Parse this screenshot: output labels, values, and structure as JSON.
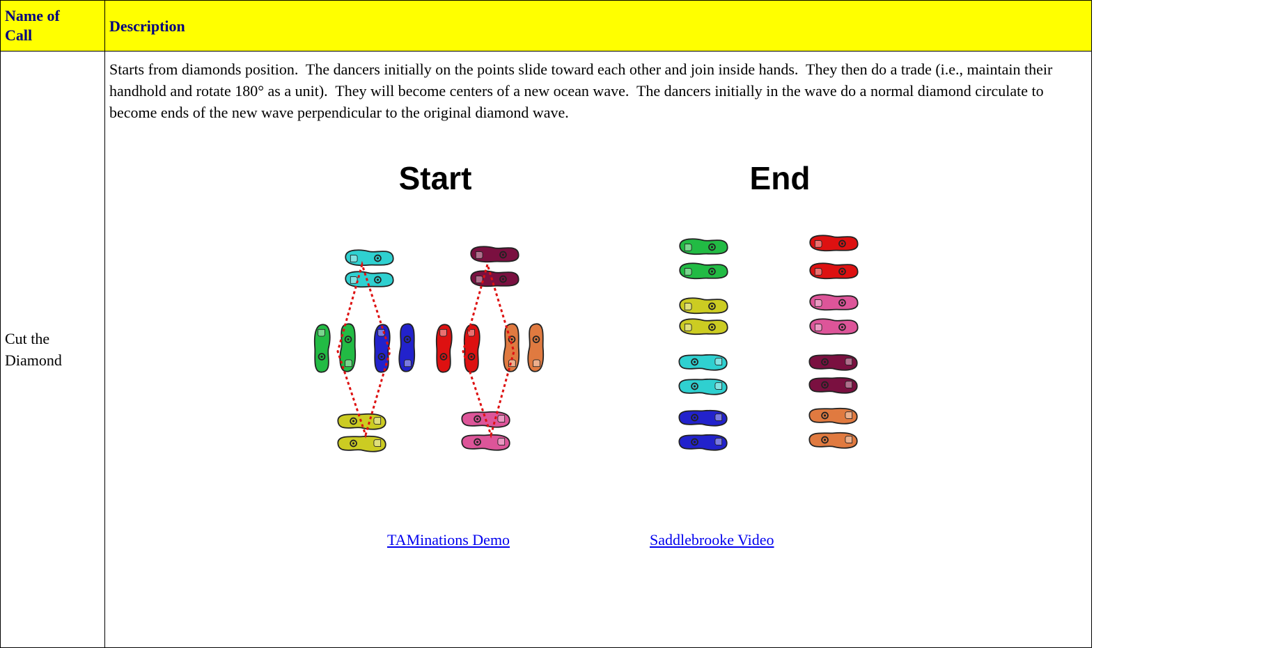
{
  "table": {
    "header": [
      "Name of Call",
      "Description"
    ],
    "rows": [
      {
        "name": "Cut the Diamond",
        "description": "Starts from diamonds position.  The dancers initially on the points slide toward each other and join inside hands.  They then do a trade (i.e., maintain their handhold and rotate 180° as a unit).  They will become centers of a new ocean wave.  The dancers initially in the wave do a normal diamond circulate to become ends of the new wave perpendicular to the original diamond wave."
      }
    ]
  },
  "figure": {
    "start": "Start",
    "end": "End"
  },
  "links": [
    "TAMinations Demo",
    "Saddlebrooke Video"
  ]
}
